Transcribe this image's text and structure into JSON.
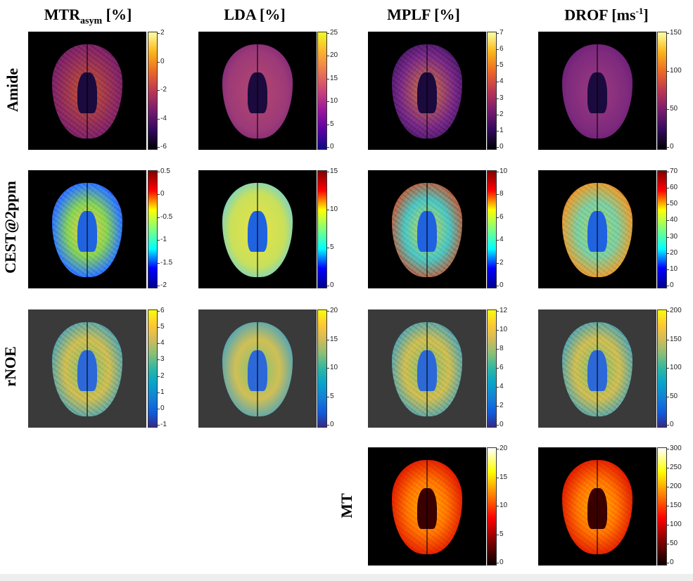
{
  "columns": [
    {
      "label": "MTR",
      "sub": "asym",
      "suffix": " [%]"
    },
    {
      "label": "LDA [%]"
    },
    {
      "label": "MPLF [%]"
    },
    {
      "label": "DROF [ms",
      "sup": "-1",
      "suffix": "]"
    }
  ],
  "rows": [
    "Amide",
    "CEST@2ppm",
    "rNOE",
    "MT"
  ],
  "colorbars": {
    "amide_mtr": [
      "2",
      "0",
      "-2",
      "-4",
      "-6"
    ],
    "amide_lda": [
      "25",
      "20",
      "15",
      "10",
      "5",
      "0"
    ],
    "amide_mplf": [
      "7",
      "6",
      "5",
      "4",
      "3",
      "2",
      "1",
      "0"
    ],
    "amide_drof": [
      "150",
      "100",
      "50",
      "0"
    ],
    "cest_mtr": [
      "0.5",
      "0",
      "-0.5",
      "-1",
      "-1.5",
      "-2"
    ],
    "cest_lda": [
      "15",
      "10",
      "5",
      "0"
    ],
    "cest_mplf": [
      "10",
      "8",
      "6",
      "4",
      "2",
      "0"
    ],
    "cest_drof": [
      "70",
      "60",
      "50",
      "40",
      "30",
      "20",
      "10",
      "0"
    ],
    "rnoe_mtr": [
      "6",
      "5",
      "4",
      "3",
      "2",
      "1",
      "0",
      "-1"
    ],
    "rnoe_lda": [
      "20",
      "15",
      "10",
      "5",
      "0"
    ],
    "rnoe_mplf": [
      "12",
      "10",
      "8",
      "6",
      "4",
      "2",
      "0"
    ],
    "rnoe_drof": [
      "200",
      "150",
      "100",
      "50",
      "0"
    ],
    "mt_mplf": [
      "20",
      "15",
      "10",
      "5",
      "0"
    ],
    "mt_drof": [
      "300",
      "250",
      "200",
      "150",
      "100",
      "50",
      "0"
    ]
  },
  "colormaps": {
    "amide": "plasma/inferno",
    "cest": "jet",
    "rnoe": "parula",
    "mt": "hot"
  }
}
